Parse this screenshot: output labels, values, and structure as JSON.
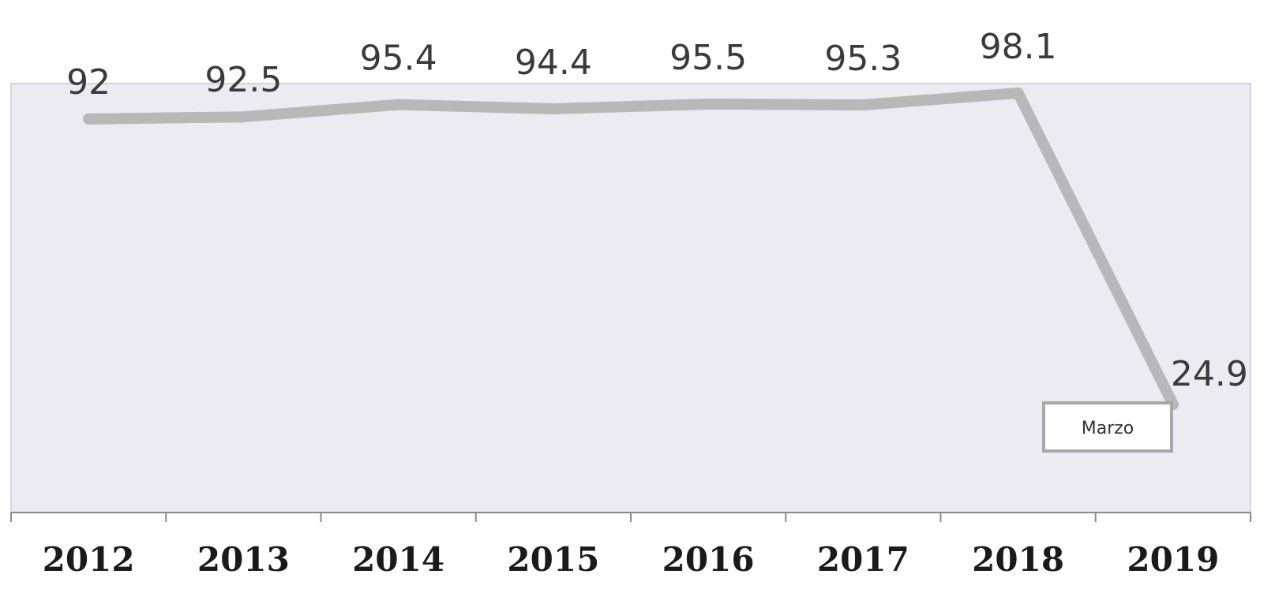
{
  "chart_data": {
    "type": "line",
    "categories": [
      "2012",
      "2013",
      "2014",
      "2015",
      "2016",
      "2017",
      "2018",
      "2019"
    ],
    "series": [
      {
        "values": [
          92,
          92.5,
          95.4,
          94.4,
          95.5,
          95.3,
          98.1,
          24.9
        ],
        "data_labels": [
          "92",
          "92.5",
          "95.4",
          "94.4",
          "95.5",
          "95.3",
          "98.1",
          "24.9"
        ]
      }
    ],
    "title": "",
    "xlabel": "",
    "ylabel": "",
    "ylim": [
      0,
      100
    ],
    "grid": false,
    "legend": "none",
    "annotation": "Marzo",
    "colors": {
      "line": "#b8b8b8",
      "plot_background": "#ebebf1",
      "plot_border": "#d4d4dc",
      "axis": "#8a8a8a",
      "tick_label": "#1a1a1a",
      "data_label": "#3a3a3a",
      "annotation_border": "#a8a8a8"
    }
  }
}
